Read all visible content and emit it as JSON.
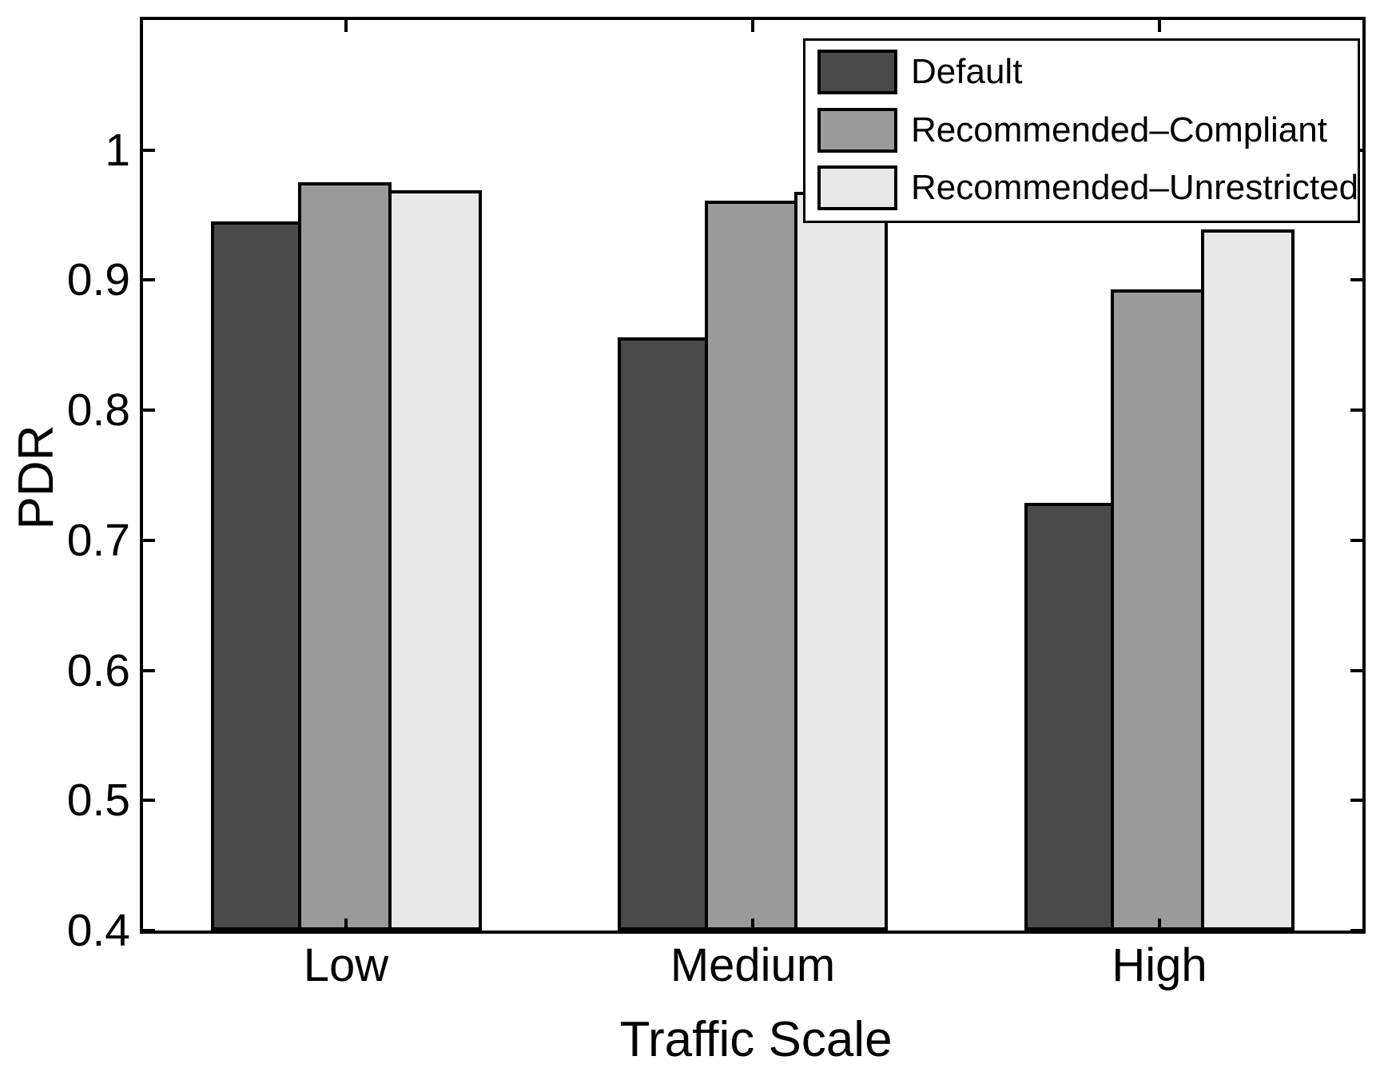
{
  "figure": {
    "background": "#ffffff",
    "frame_color": "#000000"
  },
  "chart_data": {
    "type": "bar",
    "title": "",
    "xlabel": "Traffic Scale",
    "ylabel": "PDR",
    "categories": [
      "Low",
      "Medium",
      "High"
    ],
    "series": [
      {
        "name": "Default",
        "color": "#4a4a4a",
        "values": [
          0.945,
          0.856,
          0.729
        ]
      },
      {
        "name": "Recommended–Compliant",
        "color": "#9a9a9a",
        "values": [
          0.975,
          0.961,
          0.893
        ]
      },
      {
        "name": "Recommended–Unrestricted",
        "color": "#e8e8e8",
        "values": [
          0.969,
          0.968,
          0.939
        ]
      }
    ],
    "ylim": [
      0.4,
      1.1
    ],
    "yticks": [
      0.4,
      0.5,
      0.6,
      0.7,
      0.8,
      0.9,
      1.0
    ],
    "ytick_labels": [
      "0.4",
      "0.5",
      "0.6",
      "0.7",
      "0.8",
      "0.9",
      "1"
    ],
    "bar_edge_color": "#000000",
    "legend_position": "top-right",
    "grid": false
  }
}
